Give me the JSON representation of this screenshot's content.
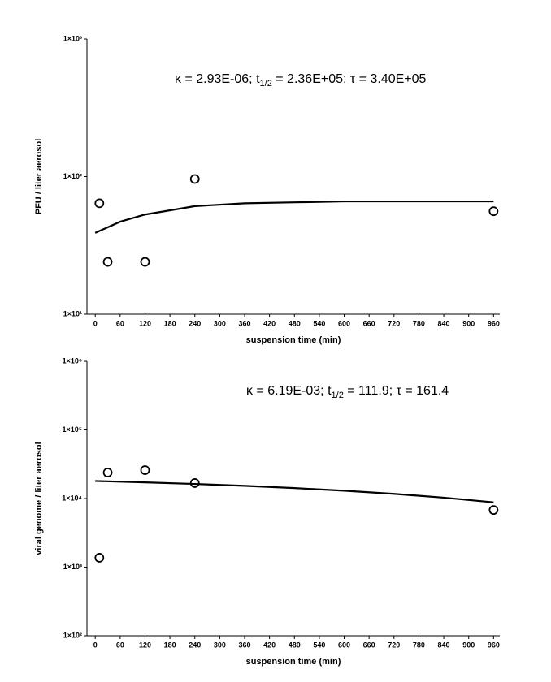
{
  "chart_data": [
    {
      "type": "scatter",
      "y_label": "PFU / liter aerosol",
      "x_label": "suspension time (min)",
      "annotation": [
        "κ = 2.93E-06; t",
        "1/2",
        " = 2.36E+05; τ = 3.40E+05"
      ],
      "log_y": true,
      "xlim": [
        -20,
        975
      ],
      "ylim": [
        10,
        1000
      ],
      "xticks": [
        0,
        60,
        120,
        180,
        240,
        300,
        360,
        420,
        480,
        540,
        600,
        660,
        720,
        780,
        840,
        900,
        960
      ],
      "yticks": [
        {
          "value": 10,
          "label": "1×10¹"
        },
        {
          "value": 100,
          "label": "1×10²"
        },
        {
          "value": 1000,
          "label": "1×10³"
        }
      ],
      "series": [
        {
          "style": "markers",
          "color": "#000000",
          "x": [
            10,
            30,
            120,
            240,
            960
          ],
          "values": [
            64,
            24,
            24,
            96,
            56
          ]
        },
        {
          "style": "line",
          "color": "#000000",
          "x": [
            0,
            60,
            120,
            240,
            360,
            480,
            600,
            720,
            840,
            960
          ],
          "values": [
            39,
            47,
            53,
            61,
            64,
            65,
            66,
            66,
            66,
            66
          ]
        }
      ]
    },
    {
      "type": "scatter",
      "y_label": "viral genome / liter aerosol",
      "x_label": "suspension time (min)",
      "annotation": [
        "κ = 6.19E-03; t",
        "1/2",
        " = 111.9; τ = 161.4"
      ],
      "log_y": true,
      "xlim": [
        -20,
        975
      ],
      "ylim": [
        100,
        1000000
      ],
      "xticks": [
        0,
        60,
        120,
        180,
        240,
        300,
        360,
        420,
        480,
        540,
        600,
        660,
        720,
        780,
        840,
        900,
        960
      ],
      "yticks": [
        {
          "value": 100,
          "label": "1×10²"
        },
        {
          "value": 1000,
          "label": "1×10³"
        },
        {
          "value": 10000,
          "label": "1×10⁴"
        },
        {
          "value": 100000,
          "label": "1×10⁵"
        },
        {
          "value": 1000000,
          "label": "1×10⁶"
        }
      ],
      "series": [
        {
          "style": "markers",
          "color": "#000000",
          "x": [
            10,
            30,
            120,
            240,
            960
          ],
          "values": [
            1370,
            23900,
            25900,
            16800,
            6800
          ]
        },
        {
          "style": "line",
          "color": "#000000",
          "x": [
            0,
            120,
            240,
            360,
            480,
            600,
            720,
            840,
            960
          ],
          "values": [
            18000,
            17200,
            16300,
            15300,
            14200,
            13000,
            11700,
            10300,
            8800
          ]
        }
      ]
    }
  ]
}
